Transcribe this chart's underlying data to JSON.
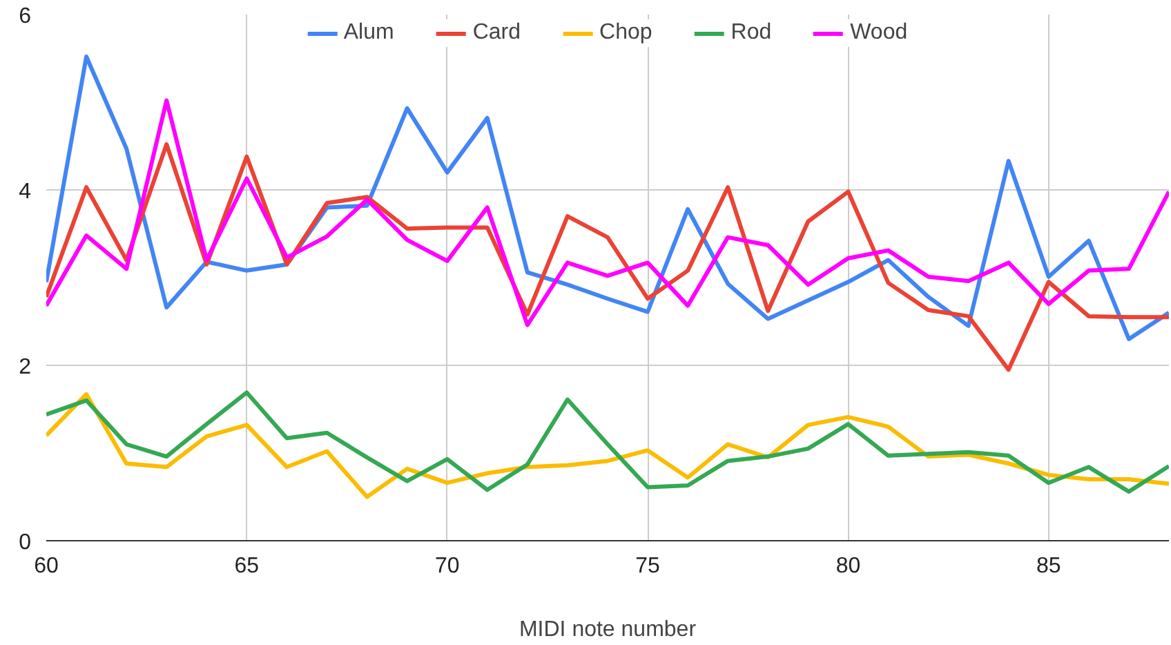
{
  "chart_data": {
    "type": "line",
    "xlabel": "MIDI note number",
    "x": [
      60,
      61,
      62,
      63,
      64,
      65,
      66,
      67,
      68,
      69,
      70,
      71,
      72,
      73,
      74,
      75,
      76,
      77,
      78,
      79,
      80,
      81,
      82,
      83,
      84,
      85,
      86,
      87,
      88
    ],
    "series": [
      {
        "name": "Alum",
        "color": "#4285f4",
        "values": [
          2.95,
          5.52,
          4.47,
          2.66,
          3.18,
          3.08,
          3.15,
          3.8,
          3.82,
          4.93,
          4.2,
          4.82,
          3.06,
          2.92,
          2.76,
          2.61,
          3.78,
          2.93,
          2.53,
          2.74,
          2.95,
          3.2,
          2.78,
          2.45,
          4.33,
          3.01,
          3.42,
          2.3,
          2.6
        ]
      },
      {
        "name": "Card",
        "color": "#ea4335",
        "values": [
          2.78,
          4.03,
          3.2,
          4.52,
          3.15,
          4.38,
          3.15,
          3.85,
          3.92,
          3.56,
          3.57,
          3.57,
          2.58,
          3.7,
          3.46,
          2.76,
          3.08,
          4.03,
          2.62,
          3.64,
          3.98,
          2.94,
          2.63,
          2.56,
          1.95,
          2.95,
          2.56,
          2.55,
          2.55
        ]
      },
      {
        "name": "Chop",
        "color": "#fbbc04",
        "values": [
          1.2,
          1.67,
          0.88,
          0.84,
          1.19,
          1.32,
          0.84,
          1.02,
          0.5,
          0.82,
          0.66,
          0.77,
          0.84,
          0.86,
          0.91,
          1.03,
          0.72,
          1.1,
          0.95,
          1.32,
          1.41,
          1.3,
          0.96,
          0.98,
          0.88,
          0.75,
          0.7,
          0.7,
          0.65
        ]
      },
      {
        "name": "Rod",
        "color": "#34a853",
        "values": [
          1.44,
          1.6,
          1.1,
          0.96,
          1.33,
          1.69,
          1.17,
          1.23,
          0.95,
          0.68,
          0.93,
          0.58,
          0.87,
          1.61,
          1.1,
          0.61,
          0.63,
          0.91,
          0.96,
          1.05,
          1.33,
          0.97,
          0.99,
          1.01,
          0.97,
          0.66,
          0.84,
          0.56,
          0.85
        ]
      },
      {
        "name": "Wood",
        "color": "#ff00ff",
        "values": [
          2.68,
          3.48,
          3.1,
          5.02,
          3.2,
          4.13,
          3.23,
          3.47,
          3.89,
          3.43,
          3.19,
          3.8,
          2.46,
          3.17,
          3.02,
          3.17,
          2.68,
          3.46,
          3.37,
          2.92,
          3.22,
          3.31,
          3.01,
          2.96,
          3.17,
          2.7,
          3.08,
          3.1,
          3.98
        ]
      }
    ],
    "xlim": [
      60,
      88
    ],
    "ylim": [
      0,
      6
    ],
    "xticks": [
      60,
      65,
      70,
      75,
      80,
      85
    ],
    "yticks": [
      0,
      2,
      4,
      6
    ],
    "grid": true,
    "legend": "top",
    "marker": "none",
    "line_style": "solid"
  }
}
